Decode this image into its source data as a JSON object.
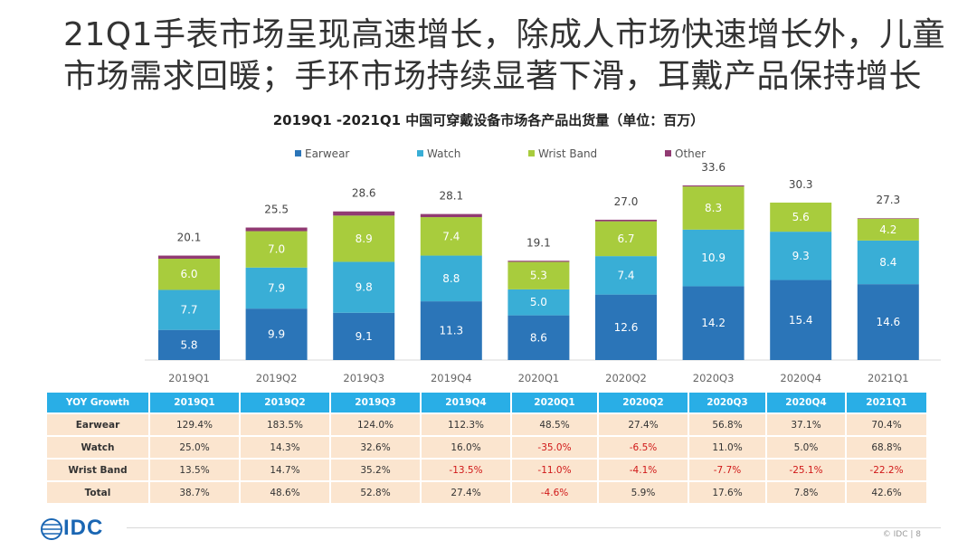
{
  "headline": {
    "line1": "21Q1手表市场呈现高速增长，除成人市场快速增长外，儿童",
    "line2": "市场需求回暖；手环市场持续显著下滑，耳戴产品保持增长"
  },
  "colors": {
    "earwear": "#2b75b8",
    "watch": "#39aed6",
    "wristband": "#a8cc3d",
    "other": "#913a72",
    "table_header": "#29aee6",
    "table_body": "#fbe5cf",
    "negative": "#d01818"
  },
  "chart_data": {
    "type": "bar",
    "stacked": true,
    "title": "2019Q1 -2021Q1 中国可穿戴设备市场各产品出货量（单位：百万）",
    "categories": [
      "2019Q1",
      "2019Q2",
      "2019Q3",
      "2019Q4",
      "2020Q1",
      "2020Q2",
      "2020Q3",
      "2020Q4",
      "2021Q1"
    ],
    "series": [
      {
        "name": "Earwear",
        "labels": [
          "5.8",
          "9.9",
          "9.1",
          "11.3",
          "8.6",
          "12.6",
          "14.2",
          "15.4",
          "14.6"
        ],
        "values": [
          5.8,
          9.9,
          9.1,
          11.3,
          8.6,
          12.6,
          14.2,
          15.4,
          14.6
        ]
      },
      {
        "name": "Watch",
        "labels": [
          "7.7",
          "7.9",
          "9.8",
          "8.8",
          "5.0",
          "7.4",
          "10.9",
          "9.3",
          "8.4"
        ],
        "values": [
          7.7,
          7.9,
          9.8,
          8.8,
          5.0,
          7.4,
          10.9,
          9.3,
          8.4
        ]
      },
      {
        "name": "Wrist Band",
        "labels": [
          "6.0",
          "7.0",
          "8.9",
          "7.4",
          "5.3",
          "6.7",
          "8.3",
          "5.6",
          "4.2"
        ],
        "values": [
          6.0,
          7.0,
          8.9,
          7.4,
          5.3,
          6.7,
          8.3,
          5.6,
          4.2
        ]
      },
      {
        "name": "Other",
        "values": [
          0.6,
          0.7,
          0.8,
          0.6,
          0.2,
          0.3,
          0.2,
          0.0,
          0.1
        ]
      }
    ],
    "totals": [
      "20.1",
      "25.5",
      "28.6",
      "28.1",
      "19.1",
      "27.0",
      "33.6",
      "30.3",
      "27.3"
    ],
    "total_values": [
      20.1,
      25.5,
      28.6,
      28.1,
      19.1,
      27.0,
      33.6,
      30.3,
      27.3
    ],
    "ylim": [
      0,
      36
    ],
    "legend_position": "top",
    "grid": false
  },
  "table": {
    "corner": "YOY Growth",
    "headers": [
      "2019Q1",
      "2019Q2",
      "2019Q3",
      "2019Q4",
      "2020Q1",
      "2020Q2",
      "2020Q3",
      "2020Q4",
      "2021Q1"
    ],
    "rows": [
      {
        "label": "Earwear",
        "cells": [
          "129.4%",
          "183.5%",
          "124.0%",
          "112.3%",
          "48.5%",
          "27.4%",
          "56.8%",
          "37.1%",
          "70.4%"
        ]
      },
      {
        "label": "Watch",
        "cells": [
          "25.0%",
          "14.3%",
          "32.6%",
          "16.0%",
          "-35.0%",
          "-6.5%",
          "11.0%",
          "5.0%",
          "68.8%"
        ]
      },
      {
        "label": "Wrist Band",
        "cells": [
          "13.5%",
          "14.7%",
          "35.2%",
          "-13.5%",
          "-11.0%",
          "-4.1%",
          "-7.7%",
          "-25.1%",
          "-22.2%"
        ]
      },
      {
        "label": "Total",
        "cells": [
          "38.7%",
          "48.6%",
          "52.8%",
          "27.4%",
          "-4.6%",
          "5.9%",
          "17.6%",
          "7.8%",
          "42.6%"
        ]
      }
    ]
  },
  "footer": {
    "logo_text": "IDC",
    "copyright": "© IDC |",
    "page": "8"
  }
}
